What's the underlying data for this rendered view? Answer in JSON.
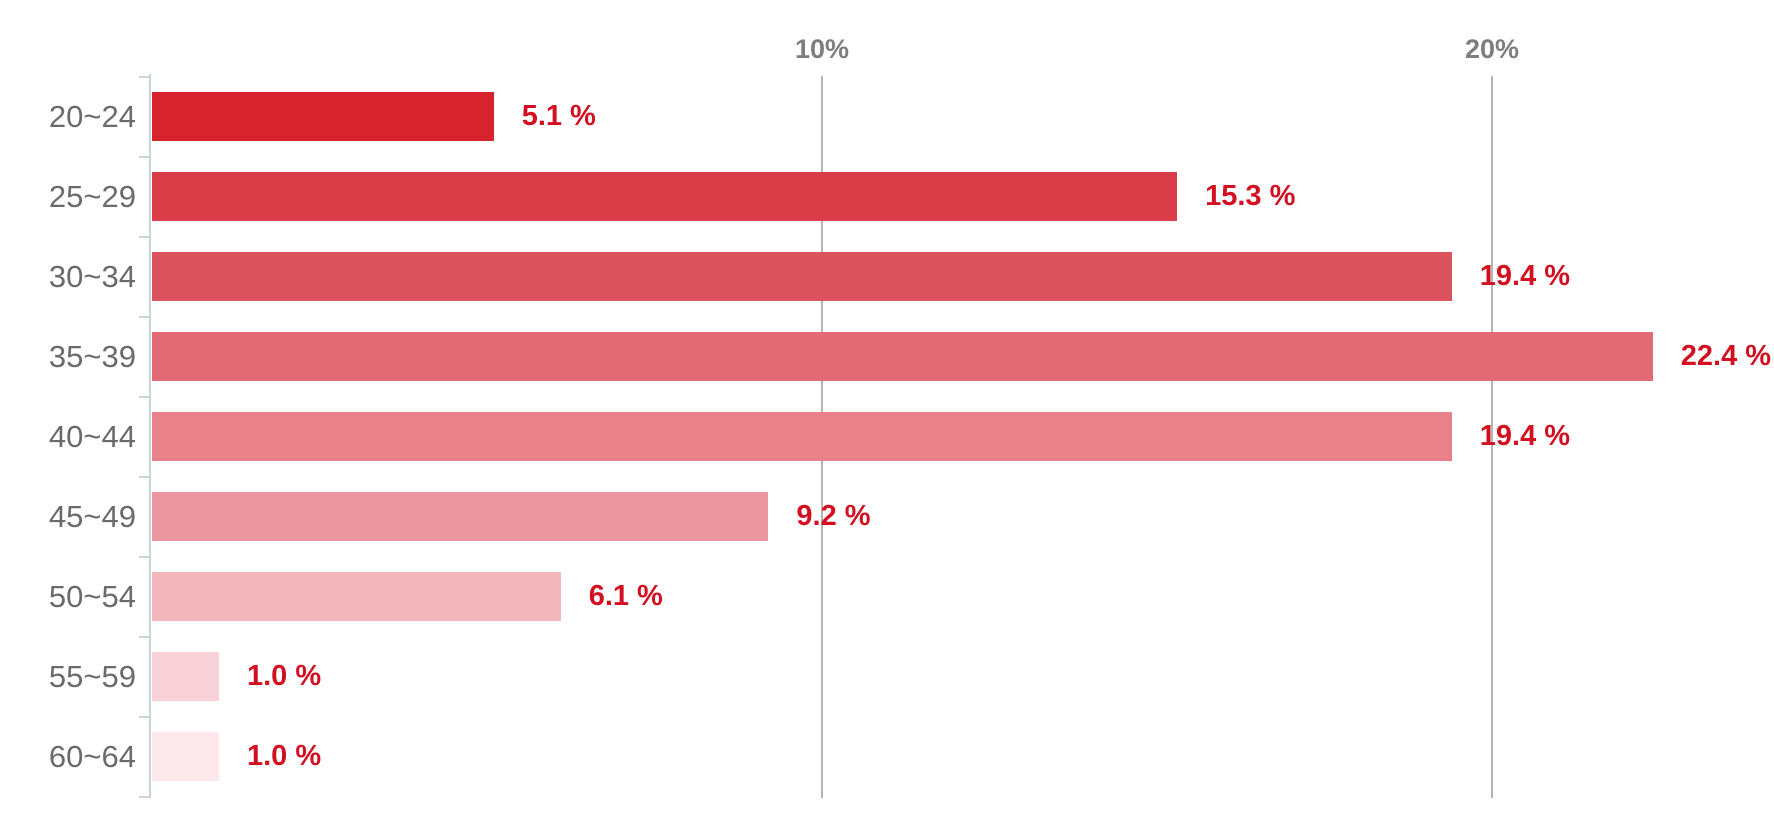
{
  "chart_data": {
    "type": "bar",
    "orientation": "horizontal",
    "title": "",
    "xlabel": "",
    "ylabel": "",
    "categories": [
      "20~24",
      "25~29",
      "30~34",
      "35~39",
      "40~44",
      "45~49",
      "50~54",
      "55~59",
      "60~64"
    ],
    "values": [
      5.1,
      15.3,
      19.4,
      22.4,
      19.4,
      9.2,
      6.1,
      1.0,
      1.0
    ],
    "value_labels": [
      "5.1 %",
      "15.3 %",
      "19.4 %",
      "22.4 %",
      "19.4 %",
      "9.2 %",
      "6.1 %",
      "1.0 %",
      "1.0 %"
    ],
    "x_ticks": [
      {
        "value": 10,
        "label": "10%"
      },
      {
        "value": 20,
        "label": "20%"
      }
    ],
    "xlim": [
      0,
      24.2
    ],
    "grid": "vertical gridlines at 10% and 20%, no horizontal gridlines",
    "legend": "none",
    "bar_colors": [
      "#d7232e",
      "#da3c48",
      "#dd525f",
      "#e26a75",
      "#e8818a",
      "#ec97a0",
      "#f2b6bc",
      "#f8d2d8",
      "#fce7ea"
    ]
  },
  "colors": {
    "value_label": "#d21021",
    "category_label": "#6b6b6b",
    "x_tick_label": "#7e7e7e",
    "gridline": "#b4b4b4",
    "axis": "#cad6de",
    "background": "#ffffff"
  }
}
